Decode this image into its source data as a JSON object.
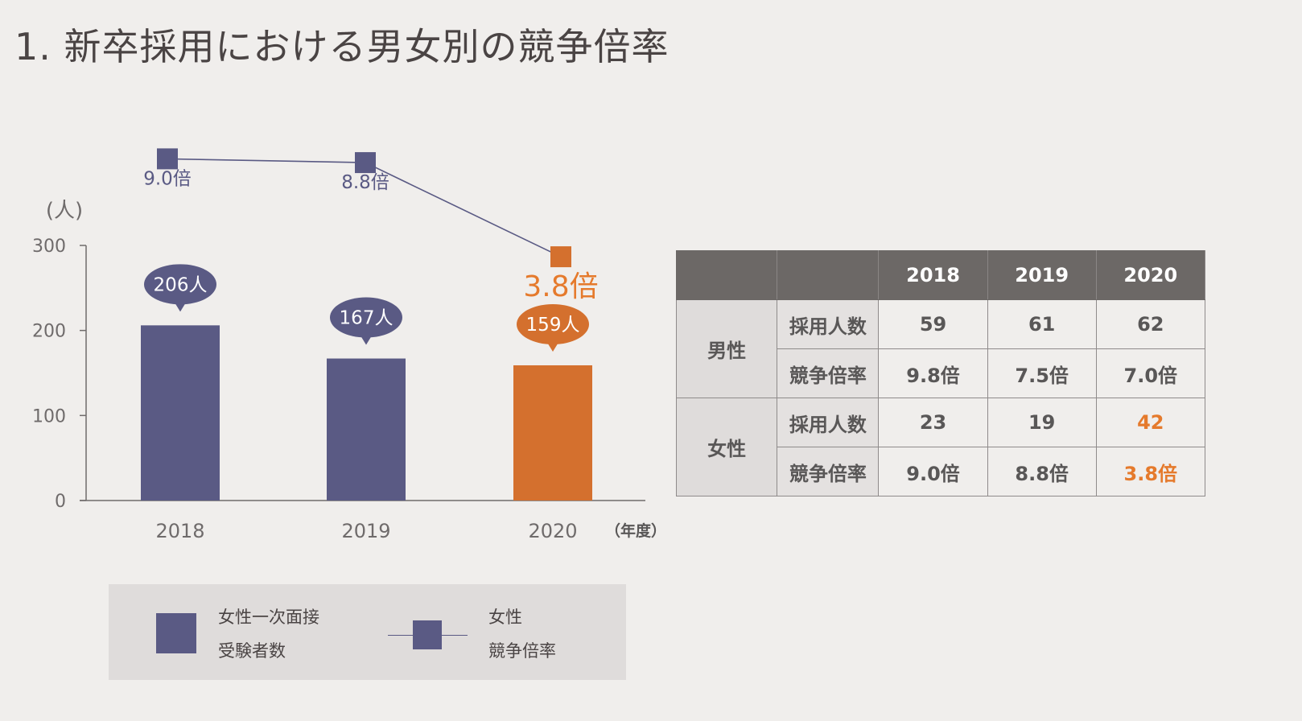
{
  "title": "1. 新卒採用における男女別の競争倍率",
  "colors": {
    "primary": "#5a5a84",
    "accent": "#d4702e",
    "accent_text": "#e57a2c"
  },
  "chart_data": [
    {
      "type": "bar",
      "categories": [
        "2018",
        "2019",
        "2020"
      ],
      "values": [
        206,
        167,
        159
      ],
      "value_labels": [
        "206人",
        "167人",
        "159人"
      ],
      "highlight_index": 2,
      "ylabel": "(人)",
      "xlabel": "（年度）",
      "ylim": [
        0,
        300
      ],
      "yticks": [
        "0",
        "100",
        "200",
        "300"
      ],
      "legend": "女性一次面接受験者数"
    },
    {
      "type": "line",
      "categories": [
        "2018",
        "2019",
        "2020"
      ],
      "values": [
        9.0,
        8.8,
        3.8
      ],
      "value_labels": [
        "9.0倍",
        "8.8倍",
        "3.8倍"
      ],
      "highlight_index": 2,
      "legend": "女性競争倍率"
    }
  ],
  "legend": {
    "bar_line1": "女性一次面接",
    "bar_line2": "受験者数",
    "line_line1": "女性",
    "line_line2": "競争倍率"
  },
  "table": {
    "years": [
      "2018",
      "2019",
      "2020"
    ],
    "groups": [
      {
        "name": "男性",
        "rows": [
          {
            "label": "採用人数",
            "values": [
              "59",
              "61",
              "62"
            ]
          },
          {
            "label": "競争倍率",
            "values": [
              "9.8倍",
              "7.5倍",
              "7.0倍"
            ]
          }
        ]
      },
      {
        "name": "女性",
        "rows": [
          {
            "label": "採用人数",
            "values": [
              "23",
              "19",
              "42"
            ]
          },
          {
            "label": "競争倍率",
            "values": [
              "9.0倍",
              "8.8倍",
              "3.8倍"
            ]
          }
        ]
      }
    ]
  }
}
